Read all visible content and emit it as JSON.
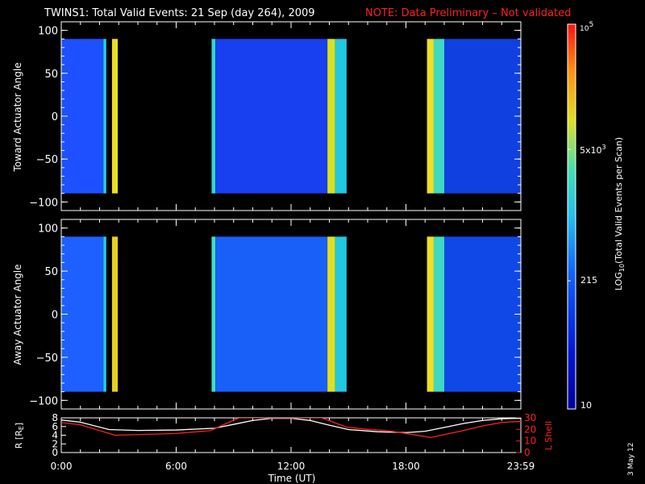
{
  "header": {
    "title": "TWINS1: Total Valid Events: 21 Sep (day 264), 2009",
    "note": "NOTE: Data Preliminary – Not validated",
    "note_color": "#ff2020"
  },
  "footer": {
    "date_stamp": "3 May 12"
  },
  "chart_data": [
    {
      "type": "heatmap",
      "panel": "toward",
      "ylabel": "Toward Actuator Angle",
      "xlim": [
        0,
        24
      ],
      "ylim": [
        -110,
        110
      ],
      "y_ticks": [
        -100,
        -50,
        0,
        50,
        100
      ],
      "data_y_range": [
        -90,
        90
      ],
      "intervals": [
        {
          "start": 0.0,
          "end": 2.2,
          "color": "#1e50ff"
        },
        {
          "start": 2.2,
          "end": 2.35,
          "color": "#20d0e0"
        },
        {
          "start": 2.65,
          "end": 2.95,
          "color": "#e8e020"
        },
        {
          "start": 7.85,
          "end": 8.05,
          "color": "#30d8d0"
        },
        {
          "start": 8.05,
          "end": 13.9,
          "color": "#1840f0"
        },
        {
          "start": 13.9,
          "end": 14.3,
          "color": "#d8e020"
        },
        {
          "start": 14.3,
          "end": 14.9,
          "color": "#20c8e0"
        },
        {
          "start": 19.1,
          "end": 19.45,
          "color": "#f0e020"
        },
        {
          "start": 19.45,
          "end": 20.0,
          "color": "#40d8c0"
        },
        {
          "start": 20.0,
          "end": 24.0,
          "color": "#1040e0"
        }
      ]
    },
    {
      "type": "heatmap",
      "panel": "away",
      "ylabel": "Away Actuator Angle",
      "xlim": [
        0,
        24
      ],
      "ylim": [
        -110,
        110
      ],
      "y_ticks": [
        -100,
        -50,
        0,
        50,
        100
      ],
      "data_y_range": [
        -90,
        90
      ],
      "intervals": [
        {
          "start": 0.0,
          "end": 2.2,
          "color": "#1e60ff"
        },
        {
          "start": 2.2,
          "end": 2.35,
          "color": "#20d0e0"
        },
        {
          "start": 2.65,
          "end": 2.95,
          "color": "#e8d020"
        },
        {
          "start": 7.85,
          "end": 8.05,
          "color": "#40e0c0"
        },
        {
          "start": 8.05,
          "end": 13.9,
          "color": "#1860f8"
        },
        {
          "start": 13.9,
          "end": 14.3,
          "color": "#e0e020"
        },
        {
          "start": 14.3,
          "end": 14.9,
          "color": "#20c8e0"
        },
        {
          "start": 19.1,
          "end": 19.45,
          "color": "#f0e020"
        },
        {
          "start": 19.45,
          "end": 20.0,
          "color": "#40d8c0"
        },
        {
          "start": 20.0,
          "end": 24.0,
          "color": "#1048e8"
        }
      ]
    },
    {
      "type": "line",
      "panel": "orbit",
      "ylabel_left": "R [R",
      "ylabel_left_sub": "E",
      "ylabel_left_end": "]",
      "ylabel_right": "L Shell",
      "xlim": [
        0,
        24
      ],
      "ylim_left": [
        0,
        8
      ],
      "ylim_right": [
        0,
        30
      ],
      "y_ticks_left": [
        0,
        2,
        4,
        6,
        8
      ],
      "y_ticks_right": [
        0,
        10,
        20,
        30
      ],
      "x_ticks": [
        0,
        6,
        12,
        18,
        24
      ],
      "x_tick_labels": [
        "0:00",
        "6:00",
        "12:00",
        "18:00",
        "23:59"
      ],
      "xlabel": "Time (UT)",
      "series": [
        {
          "axis": "left",
          "color": "#ffffff",
          "x": [
            0,
            1,
            2.5,
            4,
            6,
            8,
            9,
            10,
            11,
            12,
            13,
            14,
            15,
            16.5,
            18,
            19,
            20,
            21,
            22,
            23,
            24
          ],
          "y": [
            7.5,
            7.0,
            5.3,
            5.1,
            5.2,
            5.6,
            6.5,
            7.4,
            7.9,
            7.9,
            7.4,
            6.3,
            5.3,
            4.8,
            4.6,
            4.9,
            5.8,
            6.7,
            7.4,
            7.8,
            7.9
          ]
        },
        {
          "axis": "right",
          "color": "#ff2020",
          "x": [
            0,
            1,
            2.8,
            4,
            6,
            7.8,
            9,
            9.3,
            13.6,
            14.9,
            16,
            17,
            18.2,
            19.3,
            20,
            21,
            22,
            23,
            24
          ],
          "y": [
            26,
            24,
            15,
            15.5,
            16.5,
            19,
            28,
            30,
            30,
            22,
            20,
            19,
            16,
            13,
            15.5,
            19,
            23,
            26,
            27
          ]
        }
      ]
    }
  ],
  "colorbar": {
    "ylabel": "LOG",
    "ylabel_sub": "10",
    "ylabel_rest": "(Total Valid Events per Scan)",
    "range": [
      10,
      100000
    ],
    "scale": "log",
    "tick_10": "10",
    "tick_215": "215",
    "tick_5k_base": "5x10",
    "tick_5k_exp": "3",
    "tick_1e5_base": "10",
    "tick_1e5_exp": "5",
    "stops": [
      {
        "offset": 0,
        "color": "#0000a0"
      },
      {
        "offset": 0.15,
        "color": "#0018d8"
      },
      {
        "offset": 0.35,
        "color": "#1060ff"
      },
      {
        "offset": 0.5,
        "color": "#20c0f0"
      },
      {
        "offset": 0.62,
        "color": "#40e0b0"
      },
      {
        "offset": 0.75,
        "color": "#e0e020"
      },
      {
        "offset": 0.88,
        "color": "#ff9010"
      },
      {
        "offset": 1,
        "color": "#ff1010"
      }
    ]
  }
}
